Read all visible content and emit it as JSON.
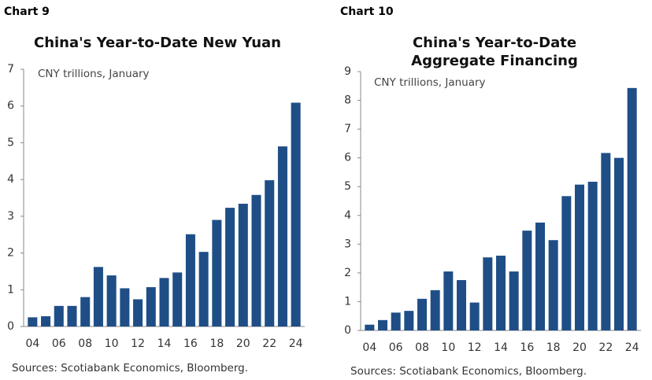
{
  "chart_data": [
    {
      "type": "bar",
      "label": "Chart 9",
      "title": [
        "China's Year-to-Date New Yuan"
      ],
      "subtitle": "CNY trillions, January",
      "source": "Sources: Scotiabank Economics, Bloomberg.",
      "color": "#1f4e87",
      "categories": [
        "04",
        null,
        "06",
        null,
        "08",
        null,
        "10",
        null,
        "12",
        null,
        "14",
        null,
        "16",
        null,
        "18",
        null,
        "20",
        null,
        "22",
        null,
        "24"
      ],
      "values": [
        0.25,
        0.28,
        0.56,
        0.56,
        0.8,
        1.62,
        1.39,
        1.04,
        0.74,
        1.07,
        1.32,
        1.47,
        2.51,
        2.03,
        2.9,
        3.23,
        3.34,
        3.58,
        3.98,
        4.9,
        6.09
      ],
      "ylim": [
        0,
        7
      ],
      "yticks": [
        0,
        1,
        2,
        3,
        4,
        5,
        6,
        7
      ]
    },
    {
      "type": "bar",
      "label": "Chart 10",
      "title": [
        "China's Year-to-Date",
        "Aggregate Financing"
      ],
      "subtitle": "CNY trillions, January",
      "source": "Sources: Scotiabank Economics, Bloomberg.",
      "color": "#1f4e87",
      "categories": [
        "04",
        null,
        "06",
        null,
        "08",
        null,
        "10",
        null,
        "12",
        null,
        "14",
        null,
        "16",
        null,
        "18",
        null,
        "20",
        null,
        "22",
        null,
        "24"
      ],
      "values": [
        0.2,
        0.36,
        0.62,
        0.68,
        1.1,
        1.4,
        2.05,
        1.75,
        0.97,
        2.54,
        2.6,
        2.05,
        3.47,
        3.75,
        3.14,
        4.67,
        5.07,
        5.17,
        6.17,
        6.0,
        8.43
      ],
      "ylim": [
        0,
        9
      ],
      "yticks": [
        0,
        1,
        2,
        3,
        4,
        5,
        6,
        7,
        8,
        9
      ]
    }
  ]
}
